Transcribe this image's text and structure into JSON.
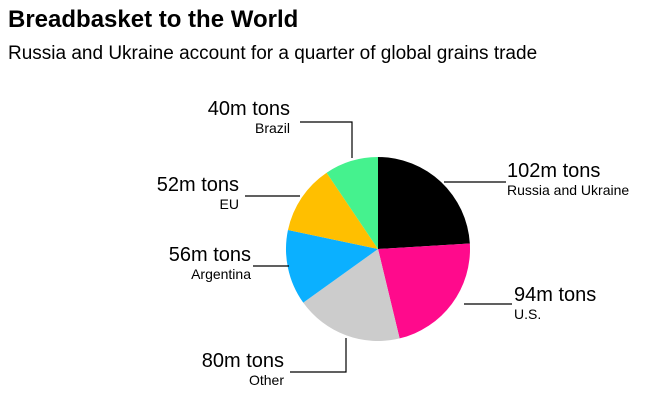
{
  "chart_data": {
    "type": "pie",
    "title": "Breadbasket to the World",
    "subtitle": "Russia and Ukraine account for a quarter of global grains trade",
    "slices": [
      {
        "name": "Russia and Ukraine",
        "value": 102,
        "label": "102m tons",
        "color": "#000000"
      },
      {
        "name": "U.S.",
        "value": 94,
        "label": "94m tons",
        "color": "#ff0a8c"
      },
      {
        "name": "Other",
        "value": 80,
        "label": "80m tons",
        "color": "#cccccc"
      },
      {
        "name": "Argentina",
        "value": 56,
        "label": "56m tons",
        "color": "#0bb0ff"
      },
      {
        "name": "EU",
        "value": 52,
        "label": "52m tons",
        "color": "#ffbf00"
      },
      {
        "name": "Brazil",
        "value": 40,
        "label": "40m tons",
        "color": "#45f28e"
      }
    ],
    "unit": "million tons",
    "start_angle": "12 o'clock",
    "direction": "clockwise"
  }
}
